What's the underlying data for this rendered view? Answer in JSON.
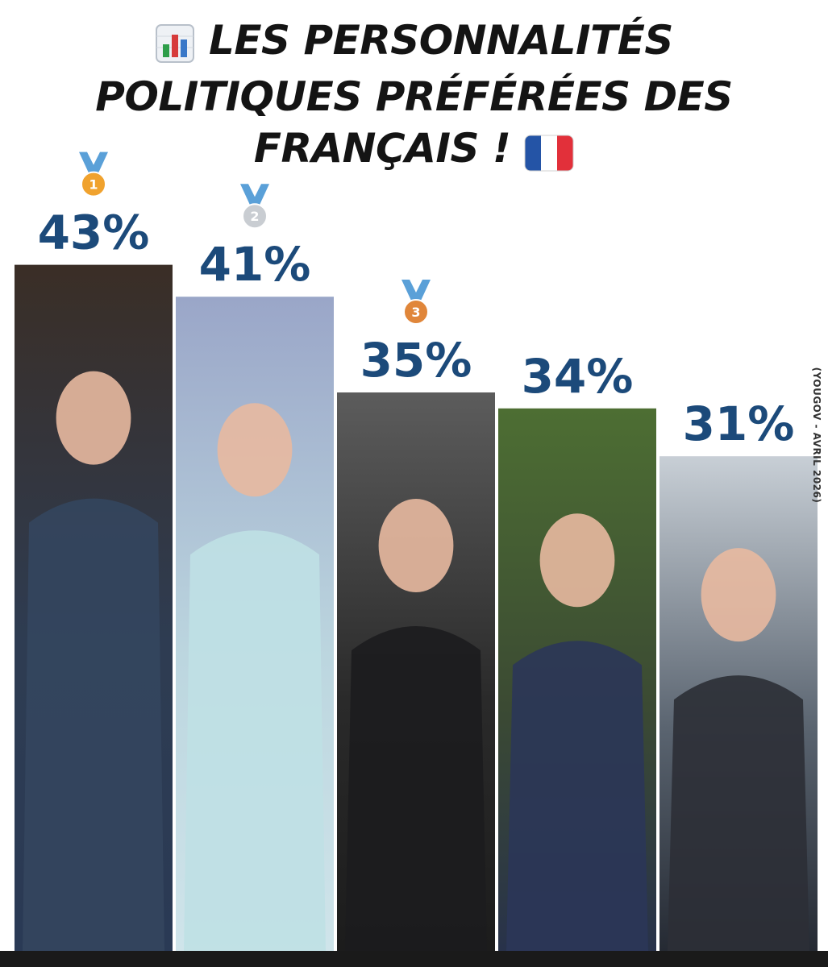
{
  "title": {
    "line1": "LES PERSONNALITÉS",
    "line2": "POLITIQUES PRÉFÉRÉES DES",
    "line3": "FRANÇAIS !",
    "leading_icon": "bar-chart-emoji-icon",
    "trailing_icon": "france-flag-icon"
  },
  "source": "(YOUGOV - AVRIL 2026)",
  "colors": {
    "value_label": "#1c4a7a",
    "title": "#141414",
    "medal_gold": "#f0a22e",
    "medal_silver": "#c9cdd2",
    "medal_bronze": "#e0863a",
    "ribbon": "#5aa0d8"
  },
  "chart_data": {
    "type": "bar",
    "unit": "%",
    "values": [
      43,
      41,
      35,
      34,
      31
    ],
    "labels": [
      "43%",
      "41%",
      "35%",
      "34%",
      "31%"
    ],
    "medals": [
      "1",
      "2",
      "3",
      null,
      null
    ],
    "bar_content": [
      "portrait-photo",
      "portrait-photo",
      "portrait-photo",
      "portrait-photo",
      "portrait-photo"
    ]
  }
}
